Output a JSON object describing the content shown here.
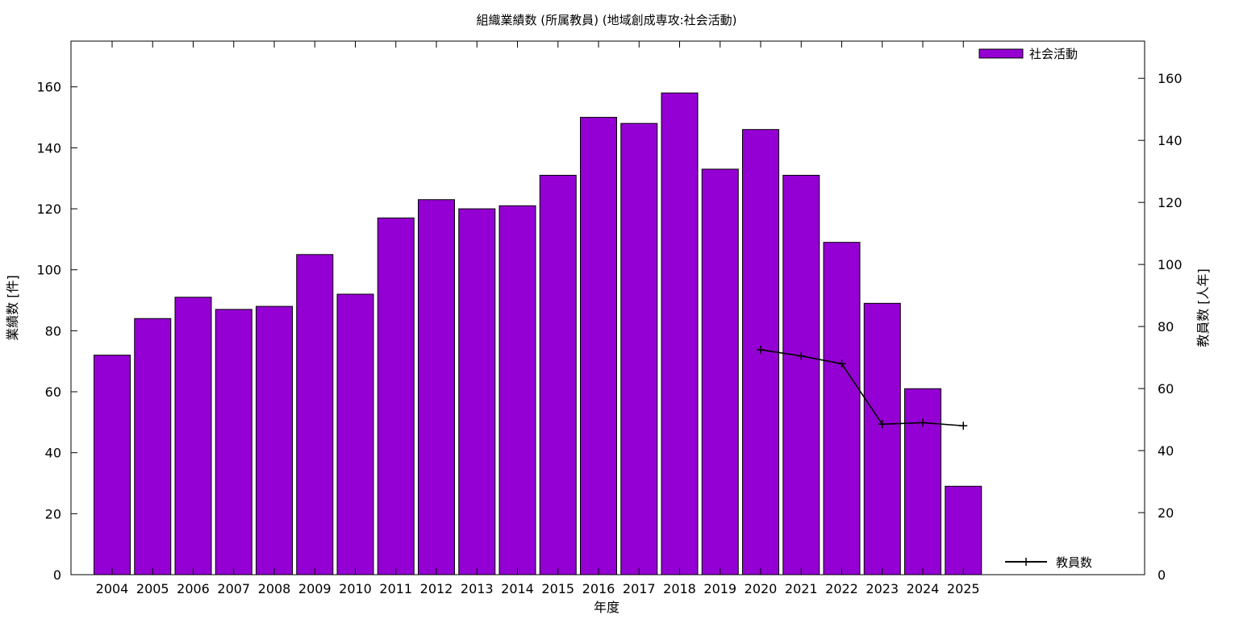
{
  "chart_data": {
    "type": "bar",
    "title": "組織業績数 (所属教員) (地域創成専攻:社会活動)",
    "xlabel": "年度",
    "ylabel": "業績数 [件]",
    "y2label": "教員数 [人年]",
    "categories": [
      "2004",
      "2005",
      "2006",
      "2007",
      "2008",
      "2009",
      "2010",
      "2011",
      "2012",
      "2013",
      "2014",
      "2015",
      "2016",
      "2017",
      "2018",
      "2019",
      "2020",
      "2021",
      "2022",
      "2023",
      "2024",
      "2025"
    ],
    "ylim": [
      0,
      175
    ],
    "y2lim": [
      0,
      172
    ],
    "yticks": [
      0,
      20,
      40,
      60,
      80,
      100,
      120,
      140,
      160
    ],
    "y2ticks": [
      0,
      20,
      40,
      60,
      80,
      100,
      120,
      140,
      160
    ],
    "grid": false,
    "legend_placement": "top-right",
    "series": [
      {
        "name": "社会活動",
        "type": "bar",
        "axis": "left",
        "color": "#9400d3",
        "values": [
          72,
          84,
          91,
          87,
          88,
          105,
          92,
          117,
          123,
          120,
          121,
          131,
          150,
          148,
          158,
          133,
          146,
          131,
          109,
          89,
          61,
          29
        ]
      },
      {
        "name": "教員数",
        "type": "line",
        "axis": "right",
        "color": "#000000",
        "x": [
          "2020",
          "2021",
          "2022",
          "2023",
          "2024",
          "2025"
        ],
        "values": [
          72.5,
          70.5,
          68.0,
          48.5,
          49.0,
          48.0
        ]
      }
    ]
  }
}
